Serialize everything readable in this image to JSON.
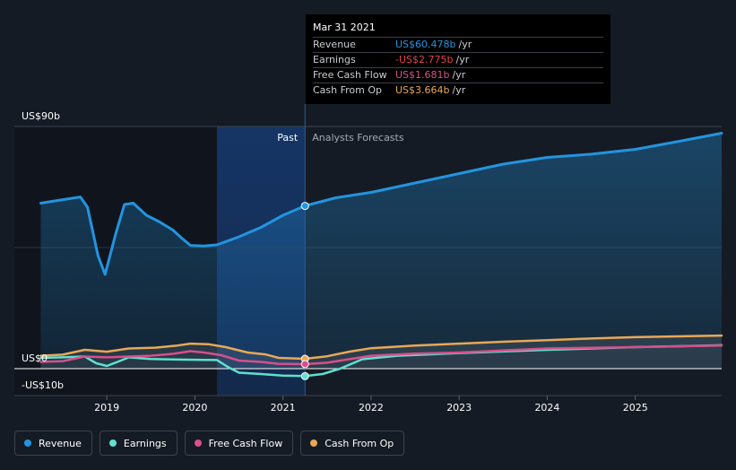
{
  "chart_data": {
    "type": "line",
    "title": "",
    "xlabel": "",
    "ylabel": "",
    "ylim": [
      -10,
      90
    ],
    "y_ticks": [
      {
        "value": 90,
        "label": "US$90b"
      },
      {
        "value": 0,
        "label": "US$0"
      },
      {
        "value": -10,
        "label": "-US$10b"
      }
    ],
    "x_ticks": [
      {
        "value": 2019,
        "label": "2019"
      },
      {
        "value": 2020,
        "label": "2020"
      },
      {
        "value": 2021,
        "label": "2021"
      },
      {
        "value": 2022,
        "label": "2022"
      },
      {
        "value": 2023,
        "label": "2023"
      },
      {
        "value": 2024,
        "label": "2024"
      },
      {
        "value": 2025,
        "label": "2025"
      }
    ],
    "xlim": [
      2017.95,
      2025.98
    ],
    "past_label": "Past",
    "forecast_label": "Analysts Forecasts",
    "highlight_start": 2020.25,
    "highlight_end": 2021.25,
    "series": [
      {
        "name": "Revenue",
        "color": "#2394df",
        "fill": true,
        "points": [
          [
            2018.25,
            61.5
          ],
          [
            2018.5,
            62.8
          ],
          [
            2018.7,
            63.8
          ],
          [
            2018.78,
            60
          ],
          [
            2018.9,
            42
          ],
          [
            2018.98,
            35
          ],
          [
            2019.1,
            50
          ],
          [
            2019.2,
            61
          ],
          [
            2019.3,
            61.5
          ],
          [
            2019.45,
            57
          ],
          [
            2019.6,
            54.5
          ],
          [
            2019.75,
            51.5
          ],
          [
            2019.85,
            48.5
          ],
          [
            2019.95,
            45.8
          ],
          [
            2020.1,
            45.6
          ],
          [
            2020.25,
            46
          ],
          [
            2020.5,
            49
          ],
          [
            2020.75,
            52.5
          ],
          [
            2021.0,
            57
          ],
          [
            2021.25,
            60.5
          ],
          [
            2021.6,
            63.5
          ],
          [
            2022.0,
            65.5
          ],
          [
            2022.5,
            69
          ],
          [
            2023.0,
            72.5
          ],
          [
            2023.5,
            76
          ],
          [
            2024.0,
            78.5
          ],
          [
            2024.5,
            79.7
          ],
          [
            2025.0,
            81.5
          ],
          [
            2025.5,
            84.5
          ],
          [
            2025.98,
            87.5
          ]
        ]
      },
      {
        "name": "Earnings",
        "color": "#5fe0d0",
        "fill": false,
        "points": [
          [
            2018.25,
            4
          ],
          [
            2018.5,
            4.2
          ],
          [
            2018.75,
            4.5
          ],
          [
            2018.88,
            2
          ],
          [
            2019.0,
            1
          ],
          [
            2019.12,
            2.5
          ],
          [
            2019.25,
            4.2
          ],
          [
            2019.5,
            3.6
          ],
          [
            2019.75,
            3.4
          ],
          [
            2020.0,
            3.3
          ],
          [
            2020.25,
            3.2
          ],
          [
            2020.38,
            0.5
          ],
          [
            2020.5,
            -1.5
          ],
          [
            2020.75,
            -2
          ],
          [
            2021.0,
            -2.6
          ],
          [
            2021.25,
            -2.78
          ],
          [
            2021.45,
            -2
          ],
          [
            2021.65,
            0
          ],
          [
            2021.9,
            3.5
          ],
          [
            2022.3,
            4.8
          ],
          [
            2023.0,
            5.8
          ],
          [
            2024.0,
            7
          ],
          [
            2025.0,
            8
          ],
          [
            2025.98,
            8.7
          ]
        ]
      },
      {
        "name": "Free Cash Flow",
        "color": "#d84f8a",
        "fill": false,
        "points": [
          [
            2018.25,
            2.5
          ],
          [
            2018.5,
            2.8
          ],
          [
            2018.75,
            4.5
          ],
          [
            2019.0,
            4.2
          ],
          [
            2019.25,
            4.5
          ],
          [
            2019.5,
            4.8
          ],
          [
            2019.75,
            5.5
          ],
          [
            2019.95,
            6.5
          ],
          [
            2020.1,
            6
          ],
          [
            2020.3,
            5
          ],
          [
            2020.5,
            3
          ],
          [
            2020.75,
            2.5
          ],
          [
            2020.95,
            1.8
          ],
          [
            2021.25,
            1.68
          ],
          [
            2021.5,
            2.2
          ],
          [
            2021.75,
            3.5
          ],
          [
            2022.0,
            4.8
          ],
          [
            2022.5,
            5.6
          ],
          [
            2023.0,
            6
          ],
          [
            2024.0,
            7.5
          ],
          [
            2025.0,
            8
          ],
          [
            2025.98,
            8.6
          ]
        ]
      },
      {
        "name": "Cash From Op",
        "color": "#e8a857",
        "fill": false,
        "points": [
          [
            2018.25,
            4.8
          ],
          [
            2018.5,
            5.2
          ],
          [
            2018.75,
            7
          ],
          [
            2019.0,
            6.3
          ],
          [
            2019.25,
            7.5
          ],
          [
            2019.55,
            7.8
          ],
          [
            2019.8,
            8.6
          ],
          [
            2019.95,
            9.3
          ],
          [
            2020.15,
            9.1
          ],
          [
            2020.35,
            8
          ],
          [
            2020.6,
            6
          ],
          [
            2020.8,
            5.3
          ],
          [
            2020.95,
            4
          ],
          [
            2021.25,
            3.66
          ],
          [
            2021.5,
            4.6
          ],
          [
            2021.75,
            6.3
          ],
          [
            2022.0,
            7.6
          ],
          [
            2022.5,
            8.6
          ],
          [
            2023.0,
            9.3
          ],
          [
            2023.5,
            10
          ],
          [
            2024.0,
            10.6
          ],
          [
            2024.5,
            11.2
          ],
          [
            2025.0,
            11.7
          ],
          [
            2025.98,
            12.3
          ]
        ]
      }
    ],
    "markers": [
      {
        "series": "Revenue",
        "x": 2021.25,
        "y": 60.478
      },
      {
        "series": "Cash From Op",
        "x": 2021.25,
        "y": 3.664
      },
      {
        "series": "Free Cash Flow",
        "x": 2021.25,
        "y": 1.681
      },
      {
        "series": "Earnings",
        "x": 2021.25,
        "y": -2.775
      }
    ]
  },
  "tooltip": {
    "date": "Mar 31 2021",
    "unit": "/yr",
    "rows": [
      {
        "name": "Revenue",
        "value": "US$60.478b",
        "color": "#2394df"
      },
      {
        "name": "Earnings",
        "value": "-US$2.775b",
        "color": "#e8414a"
      },
      {
        "name": "Free Cash Flow",
        "value": "US$1.681b",
        "color": "#d84f8a"
      },
      {
        "name": "Cash From Op",
        "value": "US$3.664b",
        "color": "#e8a857"
      }
    ]
  },
  "legend": [
    {
      "label": "Revenue",
      "color": "#2394df"
    },
    {
      "label": "Earnings",
      "color": "#5fe0d0"
    },
    {
      "label": "Free Cash Flow",
      "color": "#d84f8a"
    },
    {
      "label": "Cash From Op",
      "color": "#e8a857"
    }
  ]
}
